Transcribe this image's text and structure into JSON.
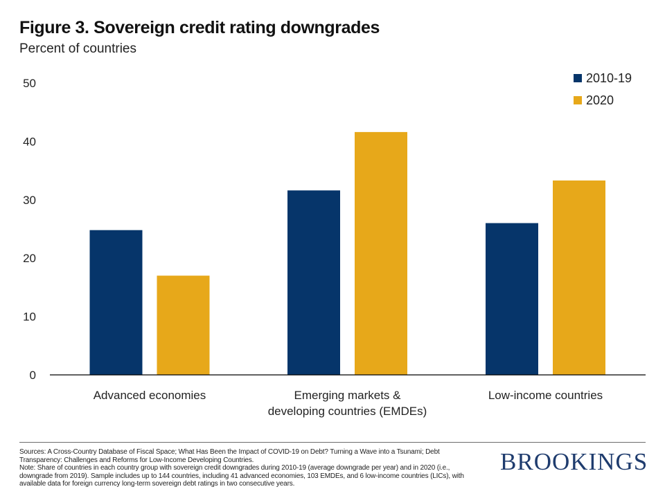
{
  "header": {
    "title": "Figure 3. Sovereign credit rating downgrades",
    "subtitle": "Percent of countries"
  },
  "colors": {
    "series_2010_19": "#06356a",
    "series_2020": "#e7a81a",
    "axis": "#000000",
    "brand": "#1f3c6e"
  },
  "chart_data": {
    "type": "bar",
    "title": "Figure 3. Sovereign credit rating downgrades",
    "subtitle": "Percent of countries",
    "xlabel": "",
    "ylabel": "Percent of countries",
    "ylim": [
      0,
      50
    ],
    "yticks": [
      0,
      10,
      20,
      30,
      40,
      50
    ],
    "grid": false,
    "legend_position": "top-right",
    "categories": [
      [
        "Advanced economies"
      ],
      [
        "Emerging markets &",
        "developing countries (EMDEs)"
      ],
      [
        "Low-income countries"
      ]
    ],
    "series": [
      {
        "name": "2010-19",
        "color": "#06356a",
        "values": [
          24.8,
          31.6,
          26.0
        ]
      },
      {
        "name": "2020",
        "color": "#e7a81a",
        "values": [
          17.0,
          41.6,
          33.3
        ]
      }
    ]
  },
  "footer": {
    "sources": "Sources: A Cross-Country Database of Fiscal Space; What Has Been the Impact of COVID-19 on Debt? Turning a Wave into a Tsunami; Debt Transparency: Challenges and Reforms for Low-Income Developing Countries.",
    "note": "Note: Share of countries in each country group with sovereign credit downgrades during 2010-19 (average downgrade per year) and in 2020 (i.e., downgrade from 2019). Sample includes up to 144 countries, including 41 advanced economies, 103 EMDEs, and 6 low-income countries (LICs), with available data for foreign currency long-term sovereign debt ratings in two consecutive years.",
    "brand": "BROOKINGS"
  }
}
